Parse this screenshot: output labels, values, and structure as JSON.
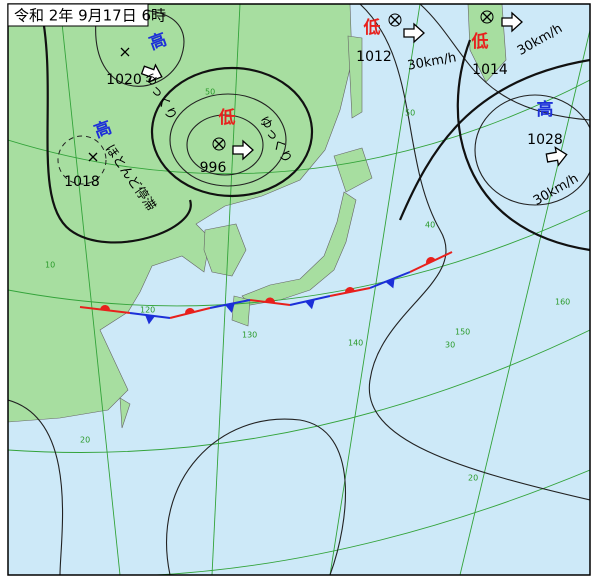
{
  "header": {
    "title": "令和 2年 9月17日 6時"
  },
  "systems": [
    {
      "kind": "高",
      "pressure": 1020,
      "motion": "ゆっくり"
    },
    {
      "kind": "高",
      "pressure": 1018,
      "motion": "ほとんど停滞"
    },
    {
      "kind": "低",
      "pressure": 996,
      "motion": "ゆっくり"
    },
    {
      "kind": "低",
      "pressure": 1012,
      "motion": "30km/h"
    },
    {
      "kind": "低",
      "pressure": 1014,
      "motion": "30km/h"
    },
    {
      "kind": "高",
      "pressure": 1028,
      "motion": "30km/h"
    }
  ],
  "grid_labels": {
    "latitudes": [
      50,
      50,
      40,
      30,
      20,
      20,
      10
    ],
    "longitudes": [
      120,
      130,
      140,
      150,
      160
    ]
  }
}
